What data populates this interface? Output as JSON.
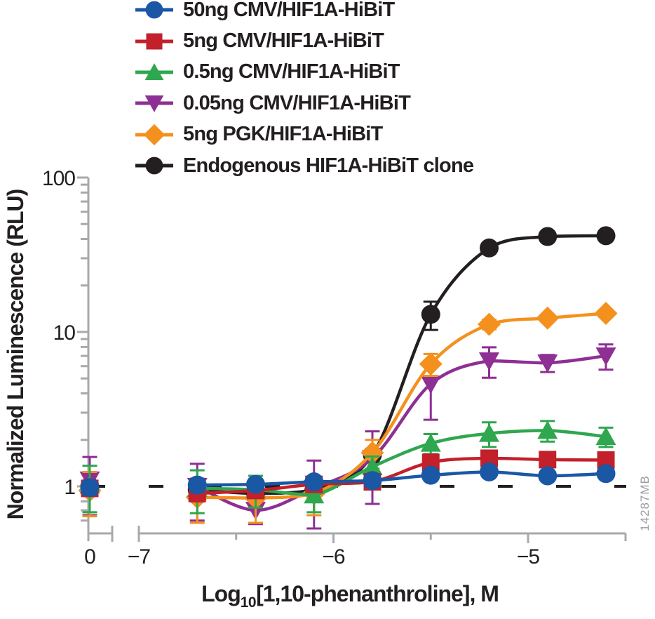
{
  "watermark": "14287MB",
  "colors": {
    "axis": "#A7A9AB",
    "text": "#231F20",
    "baseline": "#231F20",
    "watermark": "#9B9DA1"
  },
  "y_axis": {
    "title": "Normalized Luminescence (RLU)",
    "scale": "log",
    "ticks": [
      {
        "value": 100,
        "label": "100"
      },
      {
        "value": 10,
        "label": "10"
      },
      {
        "value": 1,
        "label": "1"
      }
    ]
  },
  "x_axis": {
    "title_prefix": "Log",
    "title_sub": "10",
    "title_suffix": "[1,10-phenanthroline], M",
    "range": [
      -7,
      -4.5
    ],
    "major_ticks": [
      {
        "value": -7,
        "label": "−7"
      },
      {
        "value": -6,
        "label": "−6"
      },
      {
        "value": -5,
        "label": "−5"
      }
    ],
    "minor_ticks": [
      -6.5,
      -5.5
    ],
    "untreated": {
      "label": "0"
    }
  },
  "chart_data": {
    "type": "line",
    "title": "",
    "xlabel": "Log10[1,10-phenanthroline], M",
    "ylabel": "Normalized Luminescence (RLU)",
    "x_scale": "broken-linear-log-M",
    "y_scale": "log",
    "ylim": [
      0.55,
      100
    ],
    "xlim": [
      -7,
      -4.5
    ],
    "legend_position": "top-left",
    "grid": false,
    "baseline_y": 1,
    "x": [
      -6.7,
      -6.4,
      -6.1,
      -5.8,
      -5.5,
      -5.2,
      -4.9,
      -4.6
    ],
    "series": [
      {
        "name": "50ng CMV/HIF1A-HiBiT",
        "color": "#1A57A5",
        "marker": "circle",
        "untreated": {
          "y": 0.98,
          "err": 0.1
        },
        "y": [
          1.02,
          1.03,
          1.07,
          1.09,
          1.18,
          1.24,
          1.17,
          1.21
        ],
        "err": [
          0.1,
          0.08,
          0.08,
          0.1,
          0.08,
          0.08,
          0.06,
          0.06
        ]
      },
      {
        "name": "5ng CMV/HIF1A-HiBiT",
        "color": "#C2202B",
        "marker": "square",
        "untreated": {
          "y": 0.97,
          "err": 0.1
        },
        "y": [
          0.9,
          0.94,
          1.03,
          1.07,
          1.43,
          1.52,
          1.49,
          1.48
        ],
        "err": [
          0.1,
          0.08,
          0.08,
          0.1,
          0.12,
          0.1,
          0.08,
          0.08
        ]
      },
      {
        "name": "0.5ng CMV/HIF1A-HiBiT",
        "color": "#2EA74E",
        "marker": "triangle-up",
        "untreated": {
          "y": 1.02,
          "err": 0.34
        },
        "y": [
          0.97,
          0.95,
          0.88,
          1.34,
          1.9,
          2.2,
          2.3,
          2.1
        ],
        "err": [
          0.3,
          0.22,
          0.2,
          0.22,
          0.28,
          0.4,
          0.35,
          0.3
        ]
      },
      {
        "name": "0.05ng CMV/HIF1A-HiBiT",
        "color": "#8E2F93",
        "marker": "triangle-down",
        "untreated": {
          "y": 1.1,
          "err": 0.45
        },
        "y": [
          1.0,
          0.7,
          0.97,
          1.52,
          4.6,
          6.5,
          6.3,
          7.0
        ],
        "err": [
          0.4,
          0.13,
          0.5,
          0.75,
          1.9,
          1.45,
          0.8,
          1.3
        ]
      },
      {
        "name": "5ng PGK/HIF1A-HiBiT",
        "color": "#F4911E",
        "marker": "diamond",
        "untreated": {
          "y": 0.94,
          "err": 0.3
        },
        "y": [
          0.85,
          0.84,
          0.9,
          1.65,
          6.2,
          11.2,
          12.3,
          13.2
        ],
        "err": [
          0.27,
          0.26,
          0.25,
          0.35,
          1.0,
          0.8,
          0.6,
          0.7
        ]
      },
      {
        "name": "Endogenous HIF1A-HiBiT clone",
        "color": "#231F20",
        "marker": "circle",
        "untreated": {
          "y": 1.0,
          "err": 0.08
        },
        "y": [
          0.95,
          0.9,
          0.95,
          1.6,
          13.0,
          35.0,
          41.5,
          42.0
        ],
        "err": [
          0.08,
          0.08,
          0.08,
          0.15,
          2.7,
          0,
          0,
          0
        ]
      }
    ]
  }
}
